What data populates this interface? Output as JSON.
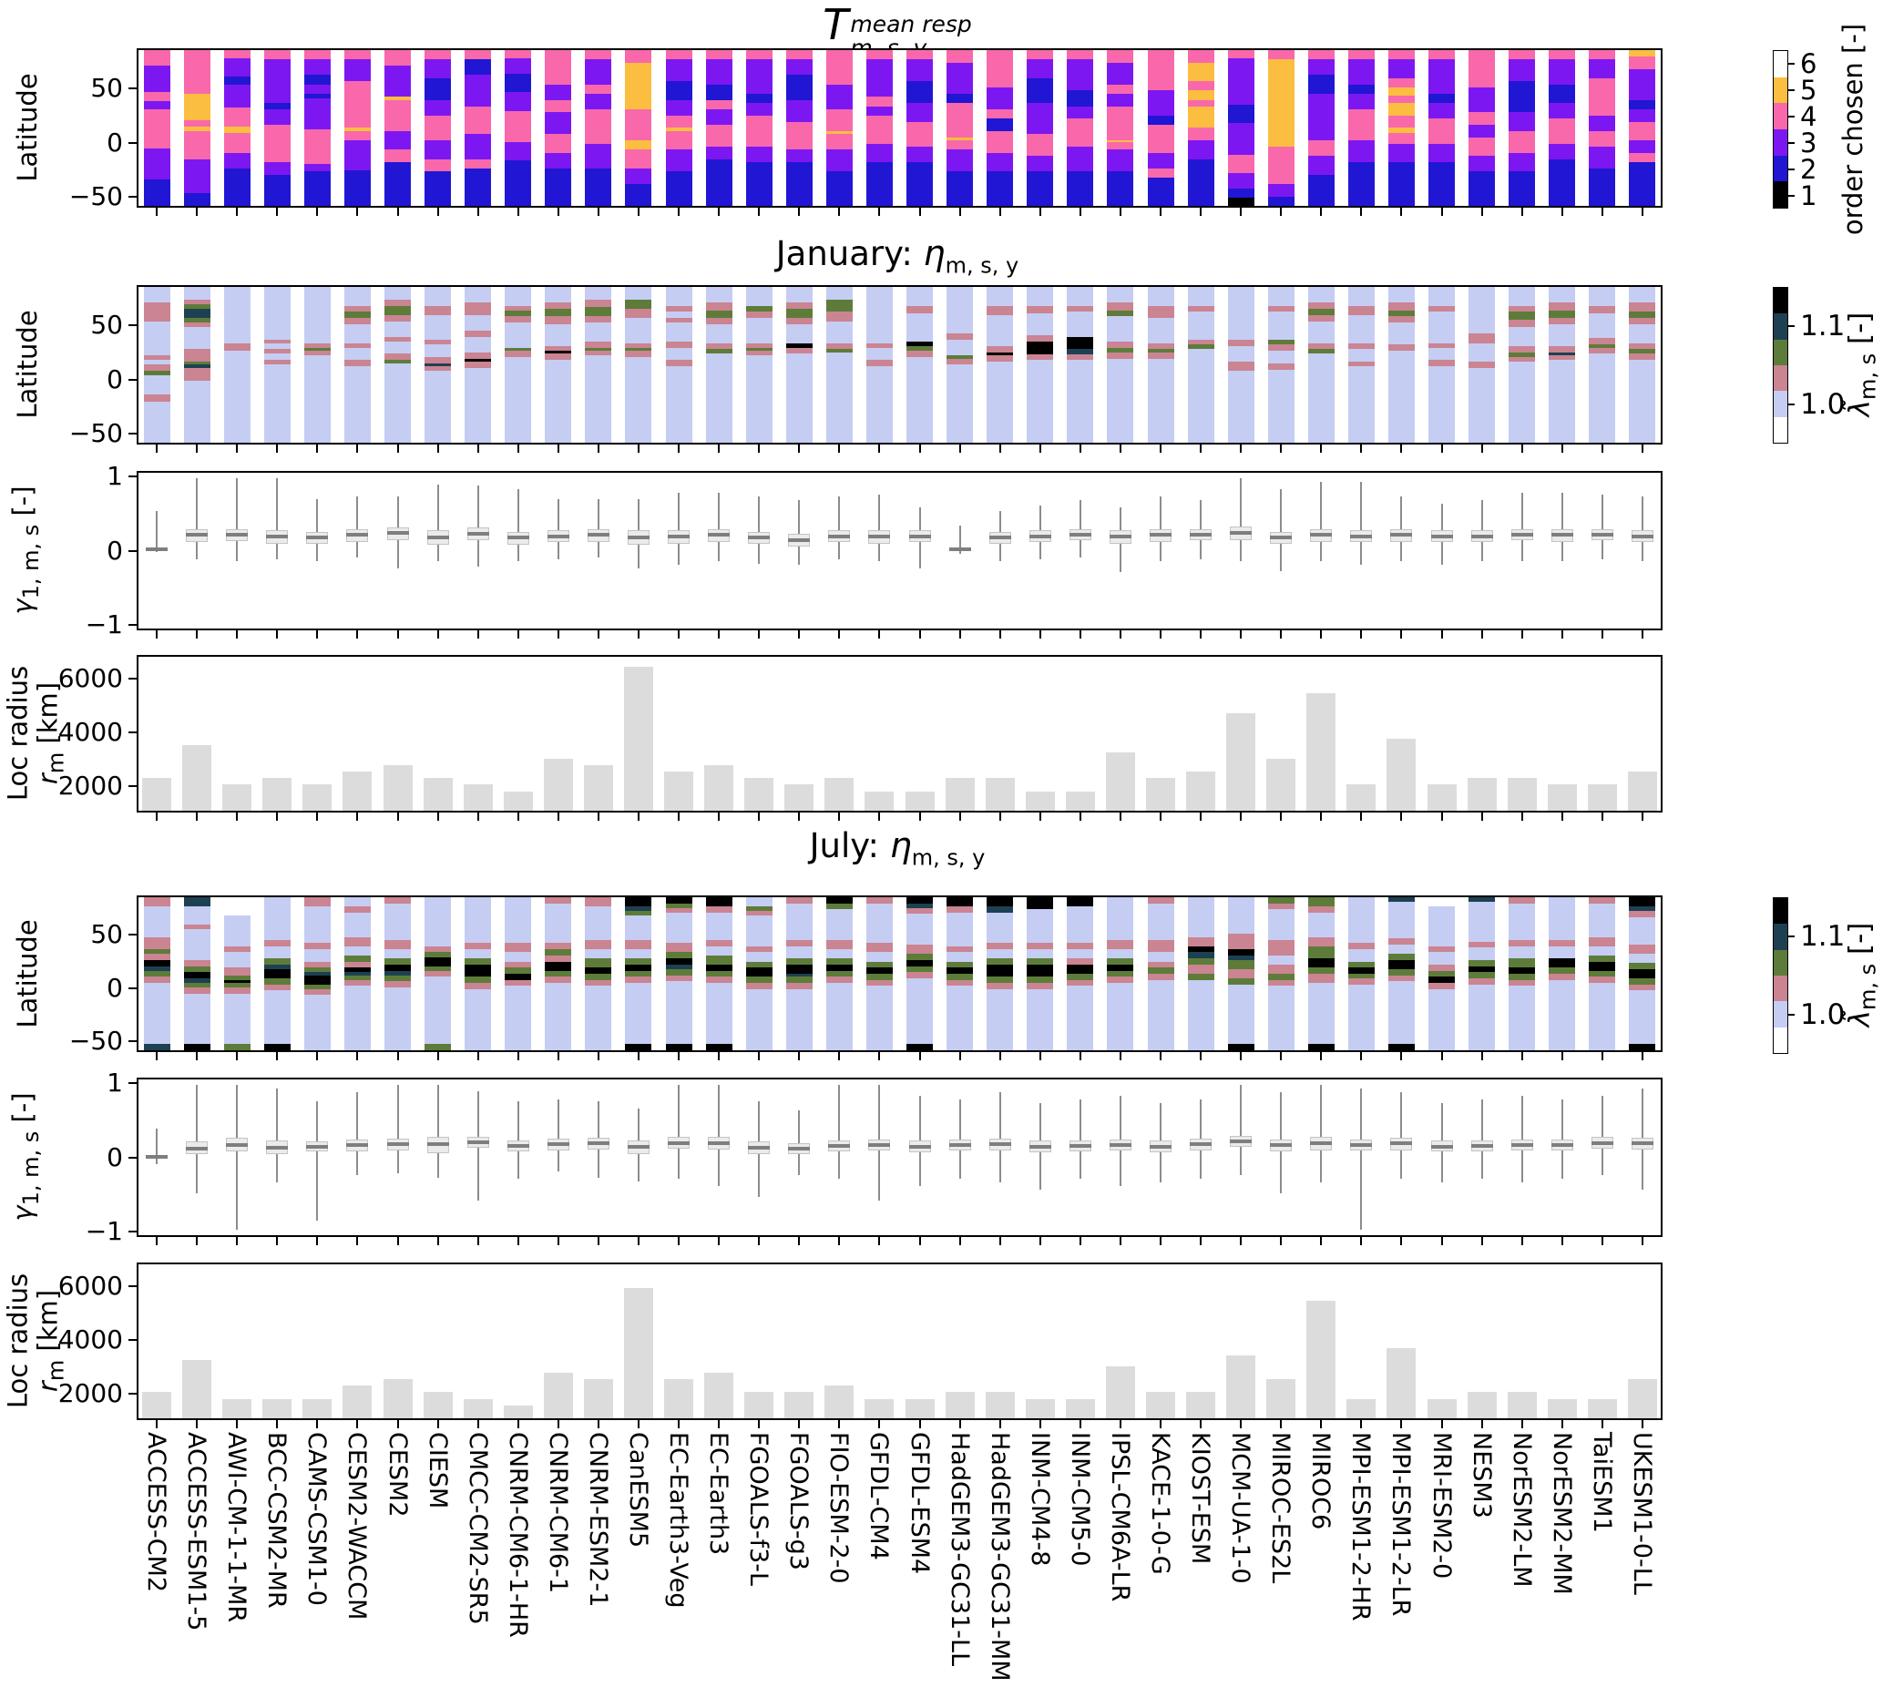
{
  "titles": {
    "main": {
      "symbol": "T",
      "superscript": "mean resp",
      "subscript": "m, s, y"
    },
    "january": {
      "prefix": "January: ",
      "symbol": "η",
      "subscript": "m, s, y"
    },
    "july": {
      "prefix": "July: ",
      "symbol": "η",
      "subscript": "m, s, y"
    }
  },
  "labels": {
    "latitude": "Latitude",
    "gamma_symbol": "γ",
    "gamma_sub": "1, m, s",
    "gamma_unit": " [-]",
    "loc_line1": "Loc radius",
    "loc_symbol": "r",
    "loc_sub": "m",
    "loc_unit": " [km]"
  },
  "axes": {
    "lat_ticks": [
      "50",
      "0",
      "−50"
    ],
    "lat_tick_values": [
      50,
      0,
      -50
    ],
    "lat_range": [
      87,
      -60
    ],
    "gamma_ticks": [
      "1",
      "0",
      "−1"
    ],
    "gamma_tick_values": [
      1,
      0,
      -1
    ],
    "gamma_range": [
      1.08,
      -1.08
    ],
    "loc_ticks": [
      "6000",
      "4000",
      "2000"
    ],
    "loc_tick_values": [
      6000,
      4000,
      2000
    ],
    "loc_range": [
      1000,
      6900
    ]
  },
  "colorbars": {
    "order": {
      "label_text": "order chosen [-]",
      "tick_labels": [
        "6",
        "5",
        "4",
        "3",
        "2",
        "1"
      ],
      "colors_top_to_bottom": [
        "#ffffff",
        "#fcbe40",
        "#f868ab",
        "#7d17f2",
        "#2016d4",
        "#000000"
      ]
    },
    "lambda": {
      "symbol": "λ̃",
      "subscript": "m, s",
      "unit": " [-]",
      "ticks": [
        {
          "label": "1.1",
          "segment_index": 1
        },
        {
          "label": "1.0",
          "segment_index": 4
        }
      ],
      "colors_top_to_bottom": [
        "#000000",
        "#1d4152",
        "#5d7c3a",
        "#ca8492",
        "#c5cdf3",
        "#ffffff"
      ]
    }
  },
  "models": [
    "ACCESS-CM2",
    "ACCESS-ESM1-5",
    "AWI-CM-1-1-MR",
    "BCC-CSM2-MR",
    "CAMS-CSM1-0",
    "CESM2-WACCM",
    "CESM2",
    "CIESM",
    "CMCC-CM2-SR5",
    "CNRM-CM6-1-HR",
    "CNRM-CM6-1",
    "CNRM-ESM2-1",
    "CanESM5",
    "EC-Earth3-Veg",
    "EC-Earth3",
    "FGOALS-f3-L",
    "FGOALS-g3",
    "FIO-ESM-2-0",
    "GFDL-CM4",
    "GFDL-ESM4",
    "HadGEM3-GC31-LL",
    "HadGEM3-GC31-MM",
    "INM-CM4-8",
    "INM-CM5-0",
    "IPSL-CM6A-LR",
    "KACE-1-0-G",
    "KIOST-ESM",
    "MCM-UA-1-0",
    "MIROC-ES2L",
    "MIROC6",
    "MPI-ESM1-2-HR",
    "MPI-ESM1-2-LR",
    "MRI-ESM2-0",
    "NESM3",
    "NorESM2-LM",
    "NorESM2-MM",
    "TaiESM1",
    "UKESM1-0-LL"
  ],
  "chart_data": [
    {
      "id": "t_mean_resp",
      "type": "heatmap",
      "title": "T^{mean resp}_{m,s,y}",
      "ylabel": "Latitude",
      "y_range": [
        87,
        -60
      ],
      "categories": "models",
      "colorbar": "order",
      "palette": {
        "k": "#000000",
        "b": "#2016d4",
        "v": "#7d17f2",
        "p": "#f868ab",
        "o": "#fcbe40",
        "w": "#ffffff"
      },
      "order_meaning": {
        "k": 1,
        "b": 2,
        "v": 3,
        "p": 4,
        "o": 5,
        "w": 6
      },
      "segments_top_to_bottom": [
        "p10 v17 p6 v5 p25 v20 b17",
        "p28 o17 p4 o3 p18 v22 b8",
        "p5 v12 b5 v15 p12 o4 p13 v10 b24",
        "p6 v28 b4 v10 p24 v8 b20",
        "p6 v10 b6 v6 b3 v20 p22 v5 b22",
        "p6 v14 p30 o2 p6 v19 b23",
        "p10 v20 o2 p20 v12 p8 b28",
        "p6 v12 b14 v10 p16 v12 p8 b22",
        "p6 b10 v20 p18 v16 p6 b24",
        "p5 v10 b12 v12 p20 v12 b29",
        "p22 v10 p8 v14 p12 v10 b24",
        "p6 v16 p6 v10 p22 v16 b24",
        "p8 o30 p20 o6 p12 v10 b14",
        "p6 v14 b12 v10 p8 o2 p12 v14 b22",
        "p6 v16 b10 p6 v10 p14 v8 b30",
        "p6 v22 b6 v8 p20 v10 b28",
        "p6 v10 b16 v14 p18 v8 b28",
        "p22 v16 p14 o2 p10 v14 b22",
        "p6 v24 p6 v6 p18 v12 b28",
        "p6 v14 b14 v12 p16 v10 b28",
        "p8 v20 b6 p22 o2 p6 v14 b22",
        "p24 v14 p6 b8 p14 v12 b22",
        "p6 v12 b16 v20 p14 v10 b22",
        "p6 v20 b10 v8 p18 v16 b22",
        "p8 v14 p6 v8 p22 o1 p5 v14 b22",
        "p26 v16 b6 p18 v10 p6 b18",
        "p8 o12 p6 o6 p4 o14 p8 v12 b30",
        "p5 v30 b12 v20 p12 v10 b6 k5",
        "p6 o56 p24 v8 b6",
        "p6 v10 b12 v30 p10 v12 b20",
        "p6 v16 b6 v10 p20 v14 b28",
        "p6 v12 p6 o5 p5 o8 p8 o3 p7 v12 b28",
        "p6 v22 b6 v10 p16 v12 b28",
        "p24 v16 p8 v8 p12 v10 b22",
        "p6 v14 b20 v12 p14 v12 b22",
        "p6 v16 b12 v10 p16 v10 b30",
        "p6 v12 p24 v10 p10 v14 b24",
        "o4 p8 v20 b6 v8 p12 v8 p6 b28"
      ]
    },
    {
      "id": "january_eta",
      "type": "heatmap",
      "title": "January: η_{m,s,y}",
      "ylabel": "Latitude",
      "y_range": [
        87,
        -60
      ],
      "categories": "models",
      "colorbar": "lambda",
      "palette": {
        "w": "#ffffff",
        "pw": "#c5cdf3",
        "r": "#ca8492",
        "g": "#5d7c3a",
        "t": "#1d4152",
        "k": "#000000"
      },
      "segments_top_to_bottom": [
        "pw10 r12 pw22 r3 pw3 r4 g3 pw12 r5 pw26",
        "pw8 r3 g3 t6 g3 r3 pw14 r8 g2 t2 r8 pw40",
        "pw36 r5 pw59",
        "pw34 r2 pw4 r3 pw4 r3 pw50",
        "pw36 r3 g2 r3 pw56",
        "pw12 r4 g4 r4 pw12 r3 pw8 r4 pw49",
        "pw8 r4 g6 r4 pw10 r3 pw8 r4 g2 pw51",
        "pw12 r6 pw16 r3 pw8 r4 t2 r3 pw46",
        "pw10 r8 pw10 r4 pw10 r4 k2 r4 pw48",
        "pw12 r3 g4 r4 pw16 g2 r4 pw55",
        "pw10 r4 g5 r5 pw14 r3 k2 r4 pw53",
        "pw8 r5 g6 r4 pw12 r4 g2 r3 pw56",
        "pw8 g6 r6 pw16 r3 g2 r4 pw55",
        "pw12 r4 pw4 r3 pw12 r4 pw8 r4 pw49",
        "pw10 r5 g5 r4 pw12 r4 g3 pw57",
        "pw12 g4 r4 pw16 r3 g2 r3 pw56",
        "pw10 r4 g6 r4 pw12 k3 r4 pw57",
        "pw8 g8 r6 pw14 r4 g2 pw58",
        "pw36 r3 pw8 r4 pw49",
        "pw12 r5 pw18 k3 g3 r4 pw55",
        "pw30 r4 pw10 g2 r4 pw50",
        "pw12 r6 pw20 r4 k2 r4 pw52",
        "pw12 r5 pw14 r4 k8 r4 pw53",
        "pw12 r4 pw16 k8 t3 r4 pw53",
        "pw10 r5 g4 pw16 r4 g3 r4 pw54",
        "pw12 r8 pw16 r4 g2 r4 pw54",
        "pw12 r4 pw18 r3 g3 pw60",
        "pw34 r4 pw10 r6 pw46",
        "pw12 r4 pw18 g3 r4 pw8 r4 pw47",
        "pw10 r4 g4 r4 pw14 r4 g3 pw57",
        "pw12 r6 pw18 r4 pw8 r3 pw49",
        "pw10 r5 g4 r4 pw14 r4 pw59",
        "pw12 r4 pw20 r3 pw8 r4 pw49",
        "pw30 r6 pw12 r4 pw48",
        "pw12 r4 g5 r5 pw12 r4 g3 r3 pw52",
        "pw10 r5 g5 r4 pw14 r4 t2 r3 pw53",
        "pw12 r5 pw16 r4 g2 r4 pw57",
        "pw10 r6 g4 r4 pw12 r4 g3 r4 pw53"
      ]
    },
    {
      "id": "january_gamma",
      "type": "boxplot",
      "ylabel": "γ1,m,s [-]",
      "y_range": [
        1.08,
        -1.08
      ],
      "yticks": [
        1,
        0,
        -1
      ],
      "categories": "models",
      "stats_median_q1_q3_lo_hi": [
        [
          0.02,
          0.0,
          0.04,
          -0.02,
          0.55
        ],
        [
          0.22,
          0.12,
          0.3,
          -0.12,
          1.0
        ],
        [
          0.22,
          0.13,
          0.3,
          -0.15,
          1.0
        ],
        [
          0.2,
          0.1,
          0.28,
          -0.12,
          1.0
        ],
        [
          0.18,
          0.1,
          0.26,
          -0.15,
          0.72
        ],
        [
          0.22,
          0.12,
          0.3,
          -0.1,
          0.75
        ],
        [
          0.25,
          0.15,
          0.32,
          -0.25,
          0.75
        ],
        [
          0.18,
          0.08,
          0.28,
          -0.15,
          0.92
        ],
        [
          0.24,
          0.14,
          0.32,
          -0.22,
          0.9
        ],
        [
          0.18,
          0.08,
          0.26,
          -0.15,
          0.85
        ],
        [
          0.2,
          0.12,
          0.28,
          -0.12,
          0.72
        ],
        [
          0.22,
          0.12,
          0.3,
          -0.1,
          0.72
        ],
        [
          0.18,
          0.08,
          0.28,
          -0.25,
          0.72
        ],
        [
          0.2,
          0.1,
          0.28,
          -0.2,
          0.8
        ],
        [
          0.22,
          0.12,
          0.3,
          -0.15,
          0.8
        ],
        [
          0.18,
          0.1,
          0.26,
          -0.18,
          0.75
        ],
        [
          0.15,
          0.06,
          0.24,
          -0.2,
          0.7
        ],
        [
          0.2,
          0.12,
          0.28,
          -0.12,
          0.75
        ],
        [
          0.2,
          0.1,
          0.28,
          -0.15,
          0.78
        ],
        [
          0.2,
          0.12,
          0.28,
          -0.25,
          0.6
        ],
        [
          0.02,
          0.0,
          0.04,
          -0.05,
          0.35
        ],
        [
          0.18,
          0.1,
          0.26,
          -0.15,
          0.55
        ],
        [
          0.2,
          0.12,
          0.28,
          -0.12,
          0.62
        ],
        [
          0.22,
          0.14,
          0.3,
          -0.1,
          0.7
        ],
        [
          0.2,
          0.1,
          0.28,
          -0.3,
          0.6
        ],
        [
          0.22,
          0.12,
          0.3,
          -0.15,
          0.75
        ],
        [
          0.22,
          0.14,
          0.3,
          -0.12,
          0.7
        ],
        [
          0.25,
          0.15,
          0.33,
          -0.15,
          1.0
        ],
        [
          0.18,
          0.1,
          0.26,
          -0.28,
          0.85
        ],
        [
          0.22,
          0.12,
          0.3,
          -0.15,
          0.95
        ],
        [
          0.2,
          0.12,
          0.28,
          -0.2,
          0.95
        ],
        [
          0.22,
          0.12,
          0.3,
          -0.15,
          0.75
        ],
        [
          0.2,
          0.12,
          0.28,
          -0.2,
          0.65
        ],
        [
          0.2,
          0.12,
          0.28,
          -0.15,
          0.7
        ],
        [
          0.22,
          0.14,
          0.3,
          -0.15,
          0.8
        ],
        [
          0.22,
          0.12,
          0.3,
          -0.15,
          0.8
        ],
        [
          0.22,
          0.14,
          0.3,
          -0.12,
          0.78
        ],
        [
          0.2,
          0.12,
          0.28,
          -0.15,
          0.75
        ]
      ]
    },
    {
      "id": "january_loc_radius",
      "type": "bar",
      "ylabel": "Loc radius rm [km]",
      "y_range": [
        1000,
        6900
      ],
      "yticks": [
        6000,
        4000,
        2000
      ],
      "categories": "models",
      "values": [
        2250,
        3500,
        2000,
        2250,
        2000,
        2500,
        2750,
        2250,
        2000,
        1750,
        3000,
        2750,
        6500,
        2500,
        2750,
        2250,
        2000,
        2250,
        1750,
        1750,
        2250,
        2250,
        1750,
        1750,
        3250,
        2250,
        2500,
        4750,
        3000,
        5500,
        2000,
        3750,
        2000,
        2250,
        2250,
        2000,
        2000,
        2500
      ]
    },
    {
      "id": "july_eta",
      "type": "heatmap",
      "title": "July: η_{m,s,y}",
      "ylabel": "Latitude",
      "y_range": [
        87,
        -60
      ],
      "categories": "models",
      "colorbar": "lambda",
      "palette": {
        "w": "#ffffff",
        "pw": "#c5cdf3",
        "r": "#ca8492",
        "g": "#5d7c3a",
        "t": "#1d4152",
        "k": "#000000"
      },
      "segments_top_to_bottom": [
        "r6 pw20 r8 g3 r4 k4 t3 g4 r4 pw40 t4",
        "t6 pw12 r3 pw20 r4 g4 k4 t3 g3 r4 pw33 k4",
        "w12 pw20 r4 pw10 r5 g3 k2 g3 r4 pw33 g4",
        "pw28 r4 pw8 g4 t3 k6 g4 r4 pw35 k4",
        "r6 pw24 r4 pw8 r4 g3 t2 k6 g3 r4 pw36",
        "pw6 r4 pw16 r6 pw6 g4 r4 k3 t2 g3 r4 pw42",
        "r4 pw24 r6 pw6 g4 k4 t3 g4 r4 pw41",
        "pw32 r4 g3 k6 g3 r4 pw44 g4",
        "pw30 r4 pw6 g4 k8 g4 r4 pw40",
        "pw30 r6 pw6 r4 g4 k4 r4 pw42",
        "r4 pw26 r4 g4 r4 k6 g4 r4 pw44",
        "r6 pw22 r6 pw6 g6 k4 g4 r4 pw42",
        "k6 t3 g3 pw16 r6 pw6 g4 k4 g4 r4 pw40 k4",
        "k4 g3 r3 pw20 r6 g4 k4 t3 g4 r4 pw41 k4",
        "k6 r4 pw18 r4 pw6 g6 k4 g4 r4 pw40 k4",
        "pw6 g3 r3 pw20 r4 pw6 g4 k6 g4 r4 pw40",
        "r4 pw24 r4 pw8 g4 k6 t2 g4 r4 pw40",
        "k4 g4 pw20 r6 pw6 g4 k4 g4 r4 pw44",
        "r4 pw26 r6 pw6 g4 k4 g4 r4 pw42",
        "k4 t3 r4 pw20 r6 g4 k4 g4 r4 pw43 k4",
        "k6 r4 pw22 r4 pw6 g4 k4 g4 r4 pw42",
        "k6 t4 pw20 r4 pw6 g4 k8 g4 r4 pw40",
        "k8 pw22 r4 pw6 g4 k8 g4 r4 pw40",
        "k6 pw24 r4 pw6 r4 k6 g4 r4 pw42",
        "pw28 r6 pw6 g4 k4 g4 r4 pw44",
        "r4 pw24 r8 pw6 r4 g4 r4 pw46",
        "pw26 r6 k4 t4 g4 r6 g4 pw46",
        "pw24 r10 k4 t3 g6 r6 g4 pw39 k4",
        "g4 r4 pw20 r10 pw6 r6 g4 r4 pw42",
        "g6 r4 pw16 r6 g8 k6 g4 r6 pw40 k4",
        "pw30 r4 pw8 g4 k4 g3 r4 pw43",
        "t3 pw24 r4 pw6 g4 k6 g4 r4 pw41 k4",
        "w6 pw26 r4 pw8 r4 g4 k4 r4 pw40",
        "t3 pw26 r4 pw8 g4 k4 g4 r4 pw43",
        "r4 pw24 r4 pw8 g6 k4 g4 r4 pw42",
        "pw28 r4 pw8 k6 g4 r4 pw46",
        "r4 pw22 r6 pw6 g4 k6 g4 r4 pw44",
        "k6 t3 r4 pw18 r6 pw6 g4 k6 g4 r4 pw35 k4"
      ]
    },
    {
      "id": "july_gamma",
      "type": "boxplot",
      "ylabel": "γ1,m,s [-]",
      "y_range": [
        1.08,
        -1.08
      ],
      "yticks": [
        1,
        0,
        -1
      ],
      "categories": "models",
      "stats_median_q1_q3_lo_hi": [
        [
          0.01,
          -0.01,
          0.03,
          -0.1,
          0.4
        ],
        [
          0.12,
          0.05,
          0.22,
          -0.5,
          1.0
        ],
        [
          0.17,
          0.08,
          0.27,
          -1.0,
          1.0
        ],
        [
          0.13,
          0.05,
          0.23,
          -0.35,
          0.95
        ],
        [
          0.15,
          0.08,
          0.22,
          -0.88,
          0.78
        ],
        [
          0.17,
          0.08,
          0.25,
          -0.25,
          0.9
        ],
        [
          0.18,
          0.1,
          0.26,
          -0.22,
          1.0
        ],
        [
          0.18,
          0.06,
          0.28,
          -0.28,
          1.0
        ],
        [
          0.21,
          0.13,
          0.28,
          -0.6,
          0.92
        ],
        [
          0.16,
          0.08,
          0.24,
          -0.3,
          0.78
        ],
        [
          0.18,
          0.1,
          0.26,
          -0.2,
          0.8
        ],
        [
          0.19,
          0.11,
          0.27,
          -0.28,
          0.78
        ],
        [
          0.14,
          0.05,
          0.24,
          -0.33,
          0.68
        ],
        [
          0.2,
          0.12,
          0.28,
          -0.3,
          1.0
        ],
        [
          0.2,
          0.11,
          0.28,
          -0.4,
          1.0
        ],
        [
          0.13,
          0.05,
          0.22,
          -0.55,
          0.78
        ],
        [
          0.12,
          0.05,
          0.2,
          -0.25,
          0.65
        ],
        [
          0.16,
          0.08,
          0.24,
          -0.3,
          1.0
        ],
        [
          0.17,
          0.09,
          0.25,
          -0.6,
          1.0
        ],
        [
          0.15,
          0.07,
          0.23,
          -0.4,
          0.85
        ],
        [
          0.17,
          0.09,
          0.25,
          -0.3,
          0.8
        ],
        [
          0.18,
          0.1,
          0.26,
          -0.35,
          0.9
        ],
        [
          0.15,
          0.07,
          0.23,
          -0.45,
          0.75
        ],
        [
          0.16,
          0.08,
          0.24,
          -0.3,
          0.8
        ],
        [
          0.17,
          0.09,
          0.25,
          -0.4,
          0.85
        ],
        [
          0.15,
          0.07,
          0.23,
          -0.35,
          0.75
        ],
        [
          0.18,
          0.1,
          0.26,
          -0.3,
          0.8
        ],
        [
          0.22,
          0.14,
          0.3,
          -0.25,
          1.0
        ],
        [
          0.17,
          0.08,
          0.25,
          -0.5,
          0.9
        ],
        [
          0.2,
          0.1,
          0.28,
          -0.35,
          1.0
        ],
        [
          0.17,
          0.09,
          0.25,
          -1.0,
          0.95
        ],
        [
          0.19,
          0.1,
          0.27,
          -0.3,
          0.9
        ],
        [
          0.15,
          0.08,
          0.23,
          -0.35,
          0.75
        ],
        [
          0.16,
          0.08,
          0.24,
          -0.3,
          0.8
        ],
        [
          0.17,
          0.09,
          0.25,
          -0.35,
          0.85
        ],
        [
          0.17,
          0.09,
          0.25,
          -0.3,
          0.8
        ],
        [
          0.2,
          0.12,
          0.28,
          -0.25,
          0.85
        ],
        [
          0.19,
          0.11,
          0.27,
          -0.45,
          0.95
        ]
      ]
    },
    {
      "id": "july_loc_radius",
      "type": "bar",
      "ylabel": "Loc radius rm [km]",
      "y_range": [
        1000,
        6900
      ],
      "yticks": [
        6000,
        4000,
        2000
      ],
      "categories": "models",
      "values": [
        2000,
        3250,
        1750,
        1750,
        1750,
        2250,
        2500,
        2000,
        1750,
        1500,
        2750,
        2500,
        6000,
        2500,
        2750,
        2000,
        2000,
        2250,
        1750,
        1750,
        2000,
        2000,
        1750,
        1750,
        3000,
        2000,
        2000,
        3400,
        2500,
        5500,
        1750,
        3700,
        1750,
        2000,
        2000,
        1750,
        1750,
        2500
      ]
    }
  ]
}
